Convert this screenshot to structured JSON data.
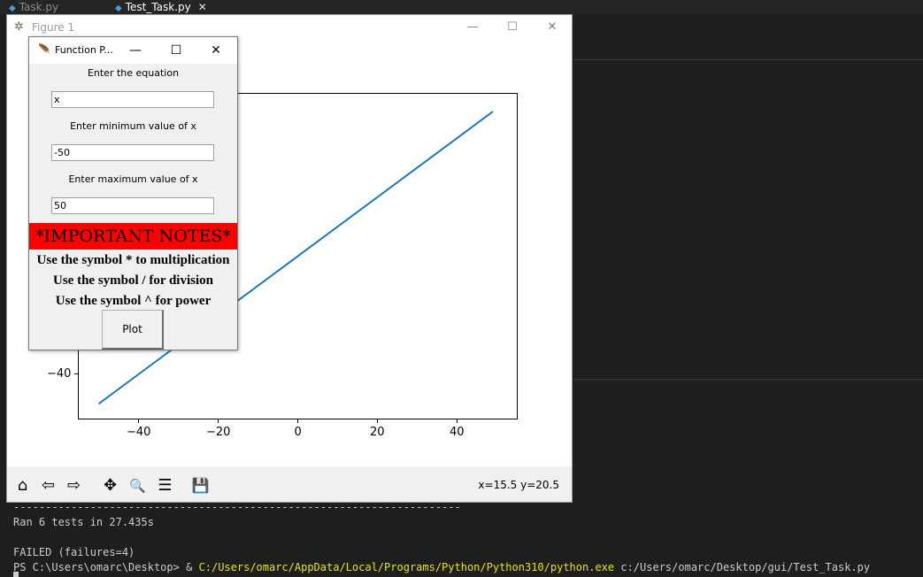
{
  "vscode": {
    "tabs": [
      {
        "label": "Task.py",
        "active": false
      },
      {
        "label": "Test_Task.py",
        "active": true,
        "close": "✕"
      }
    ]
  },
  "terminal": {
    "separator": "----------------------------------------------------------------------",
    "ran": "Ran 6 tests in 27.435s",
    "failed": "FAILED (failures=4)",
    "prompt": "PS C:\\Users\\omarc\\Desktop> & ",
    "exe": "C:/Users/omarc/AppData/Local/Programs/Python/Python310/python.exe",
    "arg": " c:/Users/omarc/Desktop/gui/Test_Task.py"
  },
  "figure": {
    "title": "Figure 1",
    "window_buttons": {
      "minimize": "—",
      "maximize": "☐",
      "close": "✕"
    },
    "coords": "x=15.5 y=20.5",
    "toolbar": [
      {
        "name": "home-icon",
        "glyph": "⌂"
      },
      {
        "name": "back-icon",
        "glyph": "⇦"
      },
      {
        "name": "forward-icon",
        "glyph": "⇨"
      },
      {
        "name": "pan-icon",
        "glyph": "✥"
      },
      {
        "name": "zoom-icon",
        "glyph": "🔍"
      },
      {
        "name": "subplots-config-icon",
        "glyph": "☰"
      },
      {
        "name": "save-icon",
        "glyph": "💾"
      }
    ]
  },
  "chart_data": {
    "type": "line",
    "title": "",
    "xlabel": "",
    "ylabel": "",
    "xlim": [
      -55,
      55
    ],
    "ylim": [
      -55,
      55
    ],
    "x_ticks": [
      -40,
      -20,
      0,
      20,
      40
    ],
    "x_tick_labels": [
      "−40",
      "−20",
      "0",
      "20",
      "40"
    ],
    "y_ticks": [
      -40
    ],
    "y_tick_labels": [
      "−40"
    ],
    "series": [
      {
        "x": [
          -50,
          49
        ],
        "y": [
          -50,
          49
        ],
        "color": "#1f77b4"
      }
    ]
  },
  "dialog": {
    "title": "Function P...",
    "window_buttons": {
      "minimize": "—",
      "maximize": "☐",
      "close": "✕"
    },
    "equation_label": "Enter the equation",
    "equation_value": "x",
    "min_label": "Enter minimum value of x",
    "min_value": "-50",
    "max_label": "Enter maximum value of x",
    "max_value": "50",
    "notes_title": "*IMPORTANT NOTES*",
    "notes": [
      "Use the symbol * to multiplication",
      "Use the symbol / for division",
      "Use the symbol ^ for power"
    ],
    "plot_button": "Plot"
  }
}
